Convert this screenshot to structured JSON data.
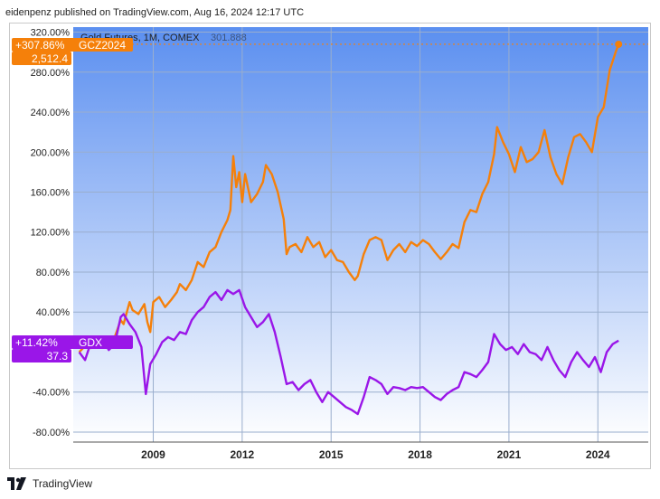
{
  "header": {
    "text": "eidenpenz published on TradingView.com, Aug 16, 2024 12:17 UTC"
  },
  "footer": {
    "brand": "TradingView"
  },
  "colors": {
    "gold": "#f5800a",
    "gdx": "#9a16e8",
    "bg_top": "#5b8ff0",
    "bg_bottom": "#ffffff",
    "grid": "#9aaecd"
  },
  "chart_data": {
    "type": "line",
    "title": "Gold Futures, 1M, COMEX",
    "title_suffix": "301.888",
    "ylabel": "",
    "xlabel": "",
    "ylim": [
      -90,
      325
    ],
    "xlim": [
      2006.3,
      2025.7
    ],
    "y_ticks": [
      "320.00%",
      "280.00%",
      "240.00%",
      "200.00%",
      "160.00%",
      "120.00%",
      "80.00%",
      "40.00%",
      "-40.00%",
      "-80.00%"
    ],
    "y_tick_values": [
      320,
      280,
      240,
      200,
      160,
      120,
      80,
      40,
      -40,
      -80
    ],
    "x_ticks": [
      "2009",
      "2012",
      "2015",
      "2018",
      "2021",
      "2024"
    ],
    "x_tick_values": [
      2009,
      2012,
      2015,
      2018,
      2021,
      2024
    ],
    "series": [
      {
        "name": "GCZ2024",
        "label": "+307.86%",
        "last_value": "2,512.4",
        "end_value": 307.86,
        "points": [
          [
            2006.5,
            0
          ],
          [
            2006.7,
            6
          ],
          [
            2006.9,
            4
          ],
          [
            2007.1,
            7
          ],
          [
            2007.3,
            9
          ],
          [
            2007.5,
            3
          ],
          [
            2007.7,
            15
          ],
          [
            2007.9,
            32
          ],
          [
            2008.0,
            28
          ],
          [
            2008.2,
            50
          ],
          [
            2008.3,
            42
          ],
          [
            2008.5,
            38
          ],
          [
            2008.7,
            48
          ],
          [
            2008.8,
            30
          ],
          [
            2008.9,
            20
          ],
          [
            2009.0,
            50
          ],
          [
            2009.2,
            55
          ],
          [
            2009.4,
            45
          ],
          [
            2009.6,
            52
          ],
          [
            2009.8,
            60
          ],
          [
            2009.9,
            68
          ],
          [
            2010.1,
            62
          ],
          [
            2010.3,
            72
          ],
          [
            2010.5,
            90
          ],
          [
            2010.7,
            85
          ],
          [
            2010.9,
            100
          ],
          [
            2011.1,
            105
          ],
          [
            2011.3,
            120
          ],
          [
            2011.5,
            132
          ],
          [
            2011.6,
            142
          ],
          [
            2011.7,
            196
          ],
          [
            2011.8,
            165
          ],
          [
            2011.9,
            180
          ],
          [
            2012.0,
            150
          ],
          [
            2012.1,
            178
          ],
          [
            2012.3,
            150
          ],
          [
            2012.5,
            158
          ],
          [
            2012.7,
            170
          ],
          [
            2012.8,
            187
          ],
          [
            2013.0,
            178
          ],
          [
            2013.2,
            160
          ],
          [
            2013.4,
            133
          ],
          [
            2013.5,
            98
          ],
          [
            2013.6,
            105
          ],
          [
            2013.8,
            108
          ],
          [
            2014.0,
            100
          ],
          [
            2014.2,
            115
          ],
          [
            2014.4,
            105
          ],
          [
            2014.6,
            110
          ],
          [
            2014.8,
            95
          ],
          [
            2015.0,
            102
          ],
          [
            2015.2,
            92
          ],
          [
            2015.4,
            90
          ],
          [
            2015.6,
            80
          ],
          [
            2015.8,
            72
          ],
          [
            2015.9,
            76
          ],
          [
            2016.1,
            98
          ],
          [
            2016.3,
            112
          ],
          [
            2016.5,
            115
          ],
          [
            2016.7,
            112
          ],
          [
            2016.9,
            92
          ],
          [
            2017.1,
            102
          ],
          [
            2017.3,
            108
          ],
          [
            2017.5,
            100
          ],
          [
            2017.7,
            110
          ],
          [
            2017.9,
            106
          ],
          [
            2018.1,
            112
          ],
          [
            2018.3,
            108
          ],
          [
            2018.5,
            100
          ],
          [
            2018.7,
            93
          ],
          [
            2018.9,
            100
          ],
          [
            2019.1,
            108
          ],
          [
            2019.3,
            104
          ],
          [
            2019.5,
            130
          ],
          [
            2019.7,
            142
          ],
          [
            2019.9,
            140
          ],
          [
            2020.1,
            158
          ],
          [
            2020.3,
            170
          ],
          [
            2020.5,
            198
          ],
          [
            2020.6,
            225
          ],
          [
            2020.8,
            210
          ],
          [
            2021.0,
            198
          ],
          [
            2021.2,
            180
          ],
          [
            2021.4,
            205
          ],
          [
            2021.6,
            190
          ],
          [
            2021.8,
            193
          ],
          [
            2022.0,
            200
          ],
          [
            2022.2,
            222
          ],
          [
            2022.4,
            195
          ],
          [
            2022.6,
            178
          ],
          [
            2022.8,
            168
          ],
          [
            2023.0,
            195
          ],
          [
            2023.2,
            215
          ],
          [
            2023.4,
            218
          ],
          [
            2023.6,
            210
          ],
          [
            2023.8,
            200
          ],
          [
            2024.0,
            235
          ],
          [
            2024.2,
            245
          ],
          [
            2024.4,
            282
          ],
          [
            2024.6,
            300
          ],
          [
            2024.7,
            307.86
          ]
        ]
      },
      {
        "name": "GDX",
        "label": "+11.42%",
        "last_value": "37.3",
        "end_value": 11.42,
        "points": [
          [
            2006.5,
            0
          ],
          [
            2006.7,
            -8
          ],
          [
            2006.9,
            10
          ],
          [
            2007.1,
            5
          ],
          [
            2007.3,
            12
          ],
          [
            2007.5,
            2
          ],
          [
            2007.7,
            8
          ],
          [
            2007.9,
            35
          ],
          [
            2008.0,
            38
          ],
          [
            2008.2,
            28
          ],
          [
            2008.4,
            20
          ],
          [
            2008.6,
            5
          ],
          [
            2008.75,
            -42
          ],
          [
            2008.9,
            -12
          ],
          [
            2009.1,
            -2
          ],
          [
            2009.3,
            10
          ],
          [
            2009.5,
            15
          ],
          [
            2009.7,
            12
          ],
          [
            2009.9,
            20
          ],
          [
            2010.1,
            18
          ],
          [
            2010.3,
            32
          ],
          [
            2010.5,
            40
          ],
          [
            2010.7,
            45
          ],
          [
            2010.9,
            55
          ],
          [
            2011.1,
            60
          ],
          [
            2011.3,
            52
          ],
          [
            2011.5,
            62
          ],
          [
            2011.7,
            58
          ],
          [
            2011.9,
            62
          ],
          [
            2012.1,
            45
          ],
          [
            2012.3,
            35
          ],
          [
            2012.5,
            25
          ],
          [
            2012.7,
            30
          ],
          [
            2012.9,
            38
          ],
          [
            2013.1,
            20
          ],
          [
            2013.3,
            -5
          ],
          [
            2013.5,
            -32
          ],
          [
            2013.7,
            -30
          ],
          [
            2013.9,
            -38
          ],
          [
            2014.1,
            -32
          ],
          [
            2014.3,
            -28
          ],
          [
            2014.5,
            -40
          ],
          [
            2014.7,
            -50
          ],
          [
            2014.9,
            -40
          ],
          [
            2015.1,
            -45
          ],
          [
            2015.3,
            -50
          ],
          [
            2015.5,
            -55
          ],
          [
            2015.7,
            -58
          ],
          [
            2015.9,
            -62
          ],
          [
            2016.1,
            -45
          ],
          [
            2016.3,
            -25
          ],
          [
            2016.5,
            -28
          ],
          [
            2016.7,
            -32
          ],
          [
            2016.9,
            -42
          ],
          [
            2017.1,
            -35
          ],
          [
            2017.3,
            -36
          ],
          [
            2017.5,
            -38
          ],
          [
            2017.7,
            -35
          ],
          [
            2017.9,
            -36
          ],
          [
            2018.1,
            -35
          ],
          [
            2018.3,
            -40
          ],
          [
            2018.5,
            -45
          ],
          [
            2018.7,
            -48
          ],
          [
            2018.9,
            -42
          ],
          [
            2019.1,
            -38
          ],
          [
            2019.3,
            -35
          ],
          [
            2019.5,
            -20
          ],
          [
            2019.7,
            -22
          ],
          [
            2019.9,
            -25
          ],
          [
            2020.1,
            -18
          ],
          [
            2020.3,
            -10
          ],
          [
            2020.5,
            18
          ],
          [
            2020.7,
            8
          ],
          [
            2020.9,
            2
          ],
          [
            2021.1,
            5
          ],
          [
            2021.3,
            -2
          ],
          [
            2021.5,
            8
          ],
          [
            2021.7,
            0
          ],
          [
            2021.9,
            -2
          ],
          [
            2022.1,
            -8
          ],
          [
            2022.3,
            5
          ],
          [
            2022.5,
            -8
          ],
          [
            2022.7,
            -18
          ],
          [
            2022.9,
            -25
          ],
          [
            2023.1,
            -10
          ],
          [
            2023.3,
            0
          ],
          [
            2023.5,
            -8
          ],
          [
            2023.7,
            -15
          ],
          [
            2023.9,
            -5
          ],
          [
            2024.1,
            -20
          ],
          [
            2024.3,
            0
          ],
          [
            2024.5,
            8
          ],
          [
            2024.7,
            11.42
          ]
        ]
      }
    ]
  }
}
